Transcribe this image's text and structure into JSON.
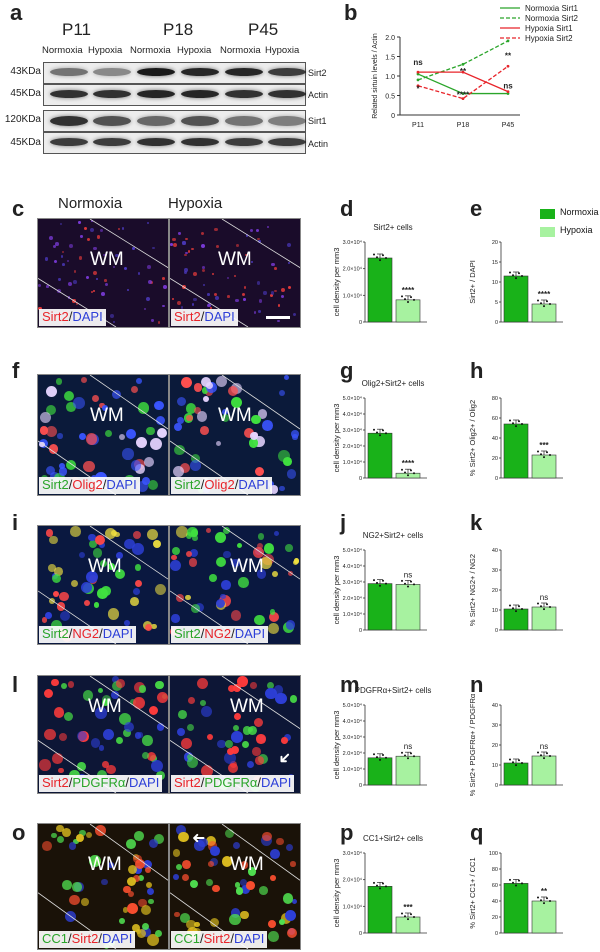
{
  "panels": {
    "a": "a",
    "b": "b",
    "c": "c",
    "d": "d",
    "e": "e",
    "f": "f",
    "g": "g",
    "h": "h",
    "i": "i",
    "j": "j",
    "k": "k",
    "l": "l",
    "m": "m",
    "n": "n",
    "o": "o",
    "p": "p",
    "q": "q"
  },
  "western": {
    "ages": [
      "P11",
      "P18",
      "P45"
    ],
    "conditions": [
      "Normoxia",
      "Hypoxia"
    ],
    "rows": [
      {
        "kda": "43KDa",
        "protein": "Sirt2"
      },
      {
        "kda": "45KDa",
        "protein": "Actin"
      },
      {
        "kda": "120KDa",
        "protein": "Sirt1"
      },
      {
        "kda": "45KDa",
        "protein": "Actin"
      }
    ]
  },
  "micro": {
    "col_headers": [
      "Normoxia",
      "Hypoxia"
    ],
    "wm": "WM",
    "rows": [
      {
        "stain": [
          {
            "t": "Sirt2",
            "c": "#e8242a"
          },
          {
            "t": "/",
            "c": "#222"
          },
          {
            "t": "DAPI",
            "c": "#2d3fd8"
          }
        ]
      },
      {
        "stain": [
          {
            "t": "Sirt2",
            "c": "#2aa52a"
          },
          {
            "t": "/",
            "c": "#222"
          },
          {
            "t": "Olig2",
            "c": "#e8242a"
          },
          {
            "t": "/",
            "c": "#222"
          },
          {
            "t": "DAPI",
            "c": "#2d3fd8"
          }
        ]
      },
      {
        "stain": [
          {
            "t": "Sirt2",
            "c": "#2aa52a"
          },
          {
            "t": "/",
            "c": "#222"
          },
          {
            "t": "NG2",
            "c": "#e8242a"
          },
          {
            "t": "/",
            "c": "#222"
          },
          {
            "t": "DAPI",
            "c": "#2d3fd8"
          }
        ]
      },
      {
        "stain": [
          {
            "t": "Sirt2",
            "c": "#e8242a"
          },
          {
            "t": "/",
            "c": "#222"
          },
          {
            "t": "PDGFRα",
            "c": "#2aa52a"
          },
          {
            "t": "/",
            "c": "#222"
          },
          {
            "t": "DAPI",
            "c": "#2d3fd8"
          }
        ]
      },
      {
        "stain": [
          {
            "t": "CC1",
            "c": "#2aa52a"
          },
          {
            "t": "/",
            "c": "#222"
          },
          {
            "t": "Sirt2",
            "c": "#e8242a"
          },
          {
            "t": "/",
            "c": "#222"
          },
          {
            "t": "DAPI",
            "c": "#2d3fd8"
          }
        ]
      }
    ]
  },
  "colors": {
    "normoxia": "#19b219",
    "hypoxia": "#a7f2a0",
    "sirt1": "#e8242a",
    "sirt2_normoxia": "#2aa52a"
  },
  "legend_e": {
    "normoxia": "Normoxia",
    "hypoxia": "Hypoxia"
  },
  "chart_data": [
    {
      "id": "b",
      "type": "line",
      "categories": [
        "P11",
        "P18",
        "P45"
      ],
      "ylabel": "Related sirtuin levels / Actin",
      "ylim": [
        0,
        2.0
      ],
      "yticks": [
        "0",
        "0.5",
        "1.0",
        "1.5",
        "2.0"
      ],
      "legend_position": "top-right",
      "series": [
        {
          "name": "Normoxia Sirt1",
          "values": [
            1.05,
            0.55,
            0.55
          ],
          "style": "solid",
          "color": "#2aa52a"
        },
        {
          "name": "Normoxia Sirt2",
          "values": [
            0.9,
            1.3,
            1.9
          ],
          "style": "dashed",
          "color": "#2aa52a"
        },
        {
          "name": "Hypoxia Sirt1",
          "values": [
            1.1,
            1.1,
            0.6
          ],
          "style": "solid",
          "color": "#e8242a"
        },
        {
          "name": "Hypoxia Sirt2",
          "values": [
            0.75,
            0.42,
            1.25
          ],
          "style": "dashed",
          "color": "#e8242a"
        }
      ],
      "annotations": [
        {
          "text": "ns",
          "x": "P11",
          "y": 1.28
        },
        {
          "text": "*",
          "x": "P11",
          "y": 0.6
        },
        {
          "text": "**",
          "x": "P18",
          "y": 1.05
        },
        {
          "text": "****",
          "x": "P18",
          "y": 0.45
        },
        {
          "text": "**",
          "x": "P45",
          "y": 1.45
        },
        {
          "text": "ns",
          "x": "P45",
          "y": 0.68
        }
      ]
    },
    {
      "id": "d",
      "type": "bar",
      "title": "Sirt2+ cells",
      "ylabel": "cell density per mm3",
      "ylim": [
        0,
        30000
      ],
      "yticks": [
        "0",
        "1.0×10⁴",
        "2.0×10⁴",
        "3.0×10⁴"
      ],
      "categories": [
        "Normoxia",
        "Hypoxia"
      ],
      "values": [
        24000,
        8300
      ],
      "sig": "****"
    },
    {
      "id": "e",
      "type": "bar",
      "title": "",
      "ylabel": "Sirt2+ / DAPI",
      "ylim": [
        0,
        20
      ],
      "yticks": [
        "0",
        "5",
        "10",
        "15",
        "20"
      ],
      "categories": [
        "Normoxia",
        "Hypoxia"
      ],
      "values": [
        11.5,
        4.5
      ],
      "sig": "****"
    },
    {
      "id": "g",
      "type": "bar",
      "title": "Olig2+Sirt2+ cells",
      "ylabel": "cell density per mm3",
      "ylim": [
        0,
        50000
      ],
      "yticks": [
        "0",
        "1.0×10⁴",
        "2.0×10⁴",
        "3.0×10⁴",
        "4.0×10⁴",
        "5.0×10⁴"
      ],
      "categories": [
        "Normoxia",
        "Hypoxia"
      ],
      "values": [
        28000,
        3000
      ],
      "sig": "****"
    },
    {
      "id": "h",
      "type": "bar",
      "title": "",
      "ylabel": "% Sirt2+ Olig2+ / Olig2",
      "ylim": [
        0,
        80
      ],
      "yticks": [
        "0",
        "20",
        "40",
        "60",
        "80"
      ],
      "categories": [
        "Normoxia",
        "Hypoxia"
      ],
      "values": [
        54,
        23
      ],
      "sig": "***"
    },
    {
      "id": "j",
      "type": "bar",
      "title": "NG2+Sirt2+ cells",
      "ylabel": "cell density per mm3",
      "ylim": [
        0,
        50000
      ],
      "yticks": [
        "0",
        "1.0×10⁴",
        "2.0×10⁴",
        "3.0×10⁴",
        "4.0×10⁴",
        "5.0×10⁴"
      ],
      "categories": [
        "Normoxia",
        "Hypoxia"
      ],
      "values": [
        29000,
        28500
      ],
      "sig": "ns"
    },
    {
      "id": "k",
      "type": "bar",
      "title": "",
      "ylabel": "% Sirt2+ NG2+ / NG2",
      "ylim": [
        0,
        40
      ],
      "yticks": [
        "0",
        "10",
        "20",
        "30",
        "40"
      ],
      "categories": [
        "Normoxia",
        "Hypoxia"
      ],
      "values": [
        10.5,
        11.5
      ],
      "sig": "ns"
    },
    {
      "id": "m",
      "type": "bar",
      "title": "PDGFRα+Sirt2+ cells",
      "ylabel": "cell density per mm3",
      "ylim": [
        0,
        50000
      ],
      "yticks": [
        "0",
        "1.0×10⁴",
        "2.0×10⁴",
        "3.0×10⁴",
        "4.0×10⁴",
        "5.0×10⁴"
      ],
      "categories": [
        "Normoxia",
        "Hypoxia"
      ],
      "values": [
        17000,
        18000
      ],
      "sig": "ns"
    },
    {
      "id": "n",
      "type": "bar",
      "title": "",
      "ylabel": "% Sirt2+ PDGFRα+ / PDGFRα",
      "ylim": [
        0,
        40
      ],
      "yticks": [
        "0",
        "10",
        "20",
        "30",
        "40"
      ],
      "categories": [
        "Normoxia",
        "Hypoxia"
      ],
      "values": [
        11,
        14.5
      ],
      "sig": "ns"
    },
    {
      "id": "p",
      "type": "bar",
      "title": "CC1+Sirt2+ cells",
      "ylabel": "cell density per mm3",
      "ylim": [
        0,
        30000
      ],
      "yticks": [
        "0",
        "1.0×10⁴",
        "2.0×10⁴",
        "3.0×10⁴"
      ],
      "categories": [
        "Normoxia",
        "Hypoxia"
      ],
      "values": [
        17500,
        6000
      ],
      "sig": "***"
    },
    {
      "id": "q",
      "type": "bar",
      "title": "",
      "ylabel": "% Sirt2+ CC1+ / CC1",
      "ylim": [
        0,
        100
      ],
      "yticks": [
        "0",
        "20",
        "40",
        "60",
        "80",
        "100"
      ],
      "categories": [
        "Normoxia",
        "Hypoxia"
      ],
      "values": [
        62,
        40
      ],
      "sig": "**"
    }
  ]
}
